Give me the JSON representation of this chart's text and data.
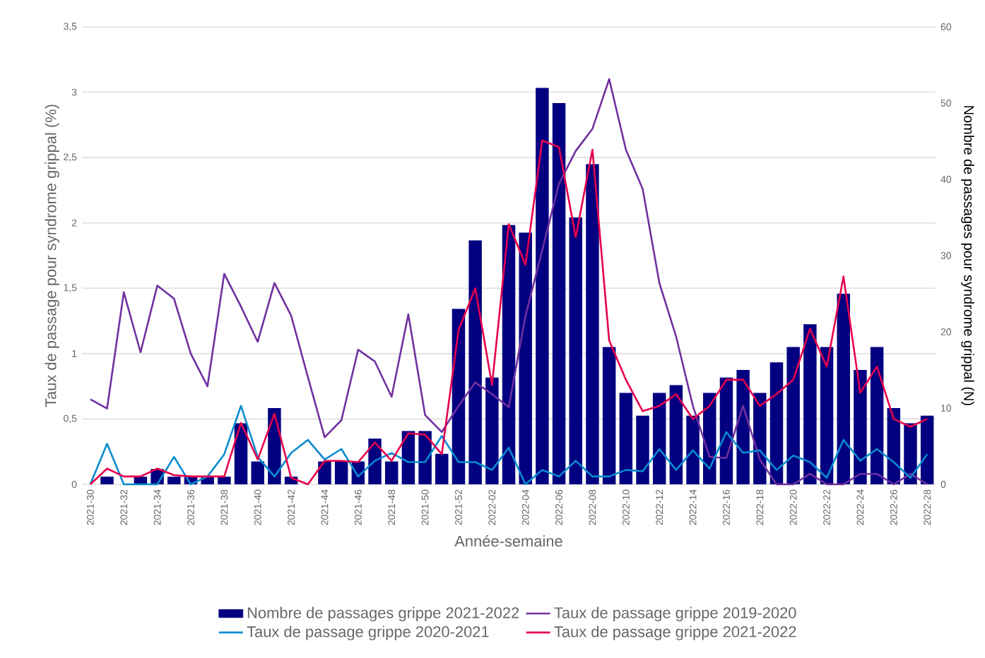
{
  "chart_data": {
    "type": "bar",
    "xlabel": "Année-semaine",
    "ylabel": "Taux de passage pour syndrome grippal (%)",
    "y2label": "Nombre de passages pour syndrome grippal (N)",
    "categories": [
      "2021-30",
      null,
      "2021-32",
      null,
      "2021-34",
      null,
      "2021-36",
      null,
      "2021-38",
      null,
      "2021-40",
      null,
      "2021-42",
      null,
      "2021-44",
      null,
      "2021-46",
      null,
      "2021-48",
      null,
      "2021-50",
      null,
      "2021-52",
      null,
      "2022-02",
      null,
      "2022-04",
      null,
      "2022-06",
      null,
      "2022-08",
      null,
      "2022-10",
      null,
      "2022-12",
      null,
      "2022-14",
      null,
      "2022-16",
      null,
      "2022-18",
      null,
      "2022-20",
      null,
      "2022-22",
      null,
      "2022-24",
      null,
      "2022-26",
      null,
      "2022-28"
    ],
    "series": [
      {
        "name": "Nombre de passages grippe 2021-2022",
        "axis": "y2",
        "color": "#000080",
        "values": [
          0,
          1,
          0,
          1,
          2,
          1,
          1,
          1,
          1,
          8,
          3,
          10,
          1,
          0,
          3,
          3,
          3,
          6,
          3,
          7,
          7,
          4,
          23,
          32,
          14,
          34,
          33,
          52,
          50,
          35,
          42,
          18,
          12,
          9,
          12,
          13,
          9,
          12,
          14,
          15,
          12,
          16,
          18,
          21,
          18,
          25,
          15,
          18,
          10,
          8,
          9
        ]
      },
      {
        "name": "Taux de passage grippe 2019-2020",
        "type": "line",
        "color": "#7030a0",
        "values": [
          0.65,
          0.58,
          1.47,
          1.01,
          1.52,
          1.42,
          1.0,
          0.75,
          1.61,
          1.36,
          1.09,
          1.54,
          1.29,
          0.82,
          0.36,
          0.49,
          1.03,
          0.94,
          0.67,
          1.3,
          0.53,
          0.4,
          0.6,
          0.78,
          0.69,
          0.59,
          1.29,
          1.79,
          2.3,
          2.55,
          2.72,
          3.1,
          2.56,
          2.26,
          1.54,
          1.13,
          0.6,
          0.21,
          0.2,
          0.6,
          0.19,
          0,
          0,
          0.08,
          0,
          0,
          0.08,
          0.08,
          0,
          0.08,
          0
        ]
      },
      {
        "name": "Taux de passage grippe 2020-2021",
        "type": "line",
        "color": "#0a8bd0",
        "values": [
          0,
          0.31,
          0,
          0,
          0,
          0.21,
          0,
          0.06,
          0.23,
          0.6,
          0.21,
          0.06,
          0.24,
          0.34,
          0.19,
          0.27,
          0.06,
          0.18,
          0.24,
          0.17,
          0.17,
          0.37,
          0.17,
          0.17,
          0.11,
          0.28,
          0,
          0.11,
          0.06,
          0.18,
          0.06,
          0.06,
          0.11,
          0.1,
          0.27,
          0.11,
          0.26,
          0.12,
          0.4,
          0.24,
          0.26,
          0.11,
          0.22,
          0.17,
          0.05,
          0.34,
          0.18,
          0.27,
          0.17,
          0.05,
          0.23
        ]
      },
      {
        "name": "Taux de passage grippe 2021-2022",
        "type": "line",
        "color": "#e6004c",
        "values": [
          0,
          0.12,
          0.06,
          0.06,
          0.12,
          0.07,
          0.06,
          0.06,
          0.06,
          0.47,
          0.19,
          0.54,
          0.05,
          0,
          0.18,
          0.18,
          0.17,
          0.32,
          0.18,
          0.39,
          0.38,
          0.23,
          1.18,
          1.5,
          0.76,
          1.99,
          1.68,
          2.63,
          2.58,
          1.89,
          2.56,
          1.1,
          0.8,
          0.56,
          0.6,
          0.69,
          0.5,
          0.6,
          0.8,
          0.8,
          0.6,
          0.69,
          0.8,
          1.19,
          0.9,
          1.59,
          0.7,
          0.9,
          0.5,
          0.44,
          0.5
        ]
      }
    ],
    "ylim": [
      0,
      3.5
    ],
    "yticks": [
      0,
      {
        "value": 0.5,
        "label": "0,5"
      },
      1,
      {
        "value": 1.5,
        "label": "1,5"
      },
      2,
      {
        "value": 2.5,
        "label": "2,5"
      },
      3,
      {
        "value": 3.5,
        "label": "3,5"
      }
    ],
    "y2lim": [
      0,
      60
    ],
    "y2ticks": [
      0,
      10,
      20,
      30,
      40,
      50,
      60
    ],
    "grid": "y",
    "legend": "bottom",
    "marker": "none",
    "line_style": "solid"
  }
}
